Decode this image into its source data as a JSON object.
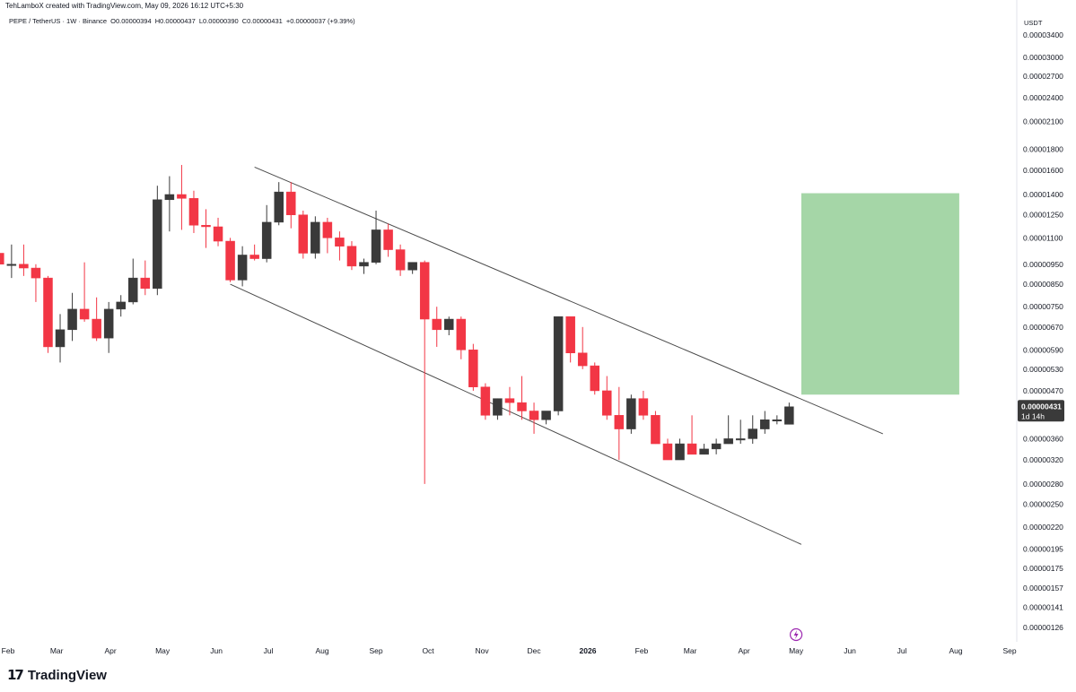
{
  "header": {
    "credit": "TehLamboX created with TradingView.com, May 09, 2026 16:12 UTC+5:30",
    "symbol": "PEPE / TetherUS · 1W · Binance",
    "open": "O0.00000394",
    "high": "H0.00000437",
    "low": "L0.00000390",
    "close": "C0.00000431",
    "change": "+0.00000037 (+9.39%)",
    "currency": "USDT"
  },
  "branding": {
    "logo_mark": "17",
    "logo_text": "TradingView"
  },
  "colors": {
    "up": "#3a3a3a",
    "down": "#f23645",
    "target_zone": "#a5d6a7",
    "channel": "#4a4a4a",
    "price_tag": "#3a3a3a"
  },
  "icons": {
    "event_marker": "lightning-icon"
  },
  "chart_data": {
    "type": "candlestick",
    "interval": "1W",
    "scale": "log",
    "y_ticks": [
      3.4e-05,
      3e-05,
      2.7e-05,
      2.4e-05,
      2.1e-05,
      1.8e-05,
      1.6e-05,
      1.4e-05,
      1.25e-05,
      1.1e-05,
      9.5e-06,
      8.5e-06,
      7.5e-06,
      6.7e-06,
      5.9e-06,
      5.3e-06,
      4.7e-06,
      3.6e-06,
      3.2e-06,
      2.8e-06,
      2.5e-06,
      2.2e-06,
      1.95e-06,
      1.75e-06,
      1.57e-06,
      1.41e-06,
      1.26e-06
    ],
    "y_tick_labels": [
      "0.00003400",
      "0.00003000",
      "0.00002700",
      "0.00002400",
      "0.00002100",
      "0.00001800",
      "0.00001600",
      "0.00001400",
      "0.00001250",
      "0.00001100",
      "0.00000950",
      "0.00000850",
      "0.00000750",
      "0.00000670",
      "0.00000590",
      "0.00000530",
      "0.00000470",
      "0.00000360",
      "0.00000320",
      "0.00000280",
      "0.00000250",
      "0.00000220",
      "0.00000195",
      "0.00000175",
      "0.00000157",
      "0.00000141",
      "0.00000126"
    ],
    "x_ticks": [
      {
        "label": "Feb",
        "date": "2025-02-01"
      },
      {
        "label": "Mar",
        "date": "2025-03-01"
      },
      {
        "label": "Apr",
        "date": "2025-04-01"
      },
      {
        "label": "May",
        "date": "2025-05-01"
      },
      {
        "label": "Jun",
        "date": "2025-06-01"
      },
      {
        "label": "Jul",
        "date": "2025-07-01"
      },
      {
        "label": "Aug",
        "date": "2025-08-01"
      },
      {
        "label": "Sep",
        "date": "2025-09-01"
      },
      {
        "label": "Oct",
        "date": "2025-10-01"
      },
      {
        "label": "Nov",
        "date": "2025-11-01"
      },
      {
        "label": "Dec",
        "date": "2025-12-01"
      },
      {
        "label": "2026",
        "date": "2026-01-01",
        "bold": true
      },
      {
        "label": "Feb",
        "date": "2026-02-01"
      },
      {
        "label": "Mar",
        "date": "2026-03-01"
      },
      {
        "label": "Apr",
        "date": "2026-04-01"
      },
      {
        "label": "May",
        "date": "2026-05-01"
      },
      {
        "label": "Jun",
        "date": "2026-06-01"
      },
      {
        "label": "Jul",
        "date": "2026-07-01"
      },
      {
        "label": "Aug",
        "date": "2026-08-01"
      },
      {
        "label": "Sep",
        "date": "2026-09-01"
      }
    ],
    "candles": [
      {
        "date": "2025-01-27",
        "o": 1.01e-05,
        "h": 1.13e-05,
        "l": 8.1e-06,
        "c": 9.5e-06
      },
      {
        "date": "2025-02-03",
        "o": 9.5e-06,
        "h": 1.06e-05,
        "l": 8.8e-06,
        "c": 9.5e-06
      },
      {
        "date": "2025-02-10",
        "o": 9.5e-06,
        "h": 1.06e-05,
        "l": 8.9e-06,
        "c": 9.3e-06
      },
      {
        "date": "2025-02-17",
        "o": 9.3e-06,
        "h": 9.5e-06,
        "l": 7.7e-06,
        "c": 8.8e-06
      },
      {
        "date": "2025-02-24",
        "o": 8.8e-06,
        "h": 8.9e-06,
        "l": 5.8e-06,
        "c": 6e-06
      },
      {
        "date": "2025-03-03",
        "o": 6e-06,
        "h": 7.2e-06,
        "l": 5.5e-06,
        "c": 6.6e-06
      },
      {
        "date": "2025-03-10",
        "o": 6.6e-06,
        "h": 8.1e-06,
        "l": 6.2e-06,
        "c": 7.4e-06
      },
      {
        "date": "2025-03-17",
        "o": 7.4e-06,
        "h": 9.6e-06,
        "l": 6.9e-06,
        "c": 7e-06
      },
      {
        "date": "2025-03-24",
        "o": 7e-06,
        "h": 7.9e-06,
        "l": 6.2e-06,
        "c": 6.3e-06
      },
      {
        "date": "2025-03-31",
        "o": 6.3e-06,
        "h": 7.7e-06,
        "l": 5.8e-06,
        "c": 7.4e-06
      },
      {
        "date": "2025-04-07",
        "o": 7.4e-06,
        "h": 8e-06,
        "l": 7.1e-06,
        "c": 7.7e-06
      },
      {
        "date": "2025-04-14",
        "o": 7.7e-06,
        "h": 9.8e-06,
        "l": 7.6e-06,
        "c": 8.8e-06
      },
      {
        "date": "2025-04-21",
        "o": 8.8e-06,
        "h": 9.7e-06,
        "l": 8e-06,
        "c": 8.3e-06
      },
      {
        "date": "2025-04-28",
        "o": 8.3e-06,
        "h": 1.47e-05,
        "l": 8e-06,
        "c": 1.36e-05
      },
      {
        "date": "2025-05-05",
        "o": 1.36e-05,
        "h": 1.55e-05,
        "l": 1.14e-05,
        "c": 1.4e-05
      },
      {
        "date": "2025-05-12",
        "o": 1.4e-05,
        "h": 1.65e-05,
        "l": 1.15e-05,
        "c": 1.37e-05
      },
      {
        "date": "2025-05-19",
        "o": 1.37e-05,
        "h": 1.43e-05,
        "l": 1.13e-05,
        "c": 1.18e-05
      },
      {
        "date": "2025-05-26",
        "o": 1.18e-05,
        "h": 1.29e-05,
        "l": 1.04e-05,
        "c": 1.17e-05
      },
      {
        "date": "2025-06-02",
        "o": 1.17e-05,
        "h": 1.23e-05,
        "l": 1.05e-05,
        "c": 1.08e-05
      },
      {
        "date": "2025-06-09",
        "o": 1.08e-05,
        "h": 1.1e-05,
        "l": 8.6e-06,
        "c": 8.7e-06
      },
      {
        "date": "2025-06-16",
        "o": 8.7e-06,
        "h": 1.05e-05,
        "l": 8.4e-06,
        "c": 1e-05
      },
      {
        "date": "2025-06-23",
        "o": 1e-05,
        "h": 1.06e-05,
        "l": 9.7e-06,
        "c": 9.8e-06
      },
      {
        "date": "2025-06-30",
        "o": 9.8e-06,
        "h": 1.32e-05,
        "l": 9.6e-06,
        "c": 1.2e-05
      },
      {
        "date": "2025-07-07",
        "o": 1.2e-05,
        "h": 1.5e-05,
        "l": 1.18e-05,
        "c": 1.42e-05
      },
      {
        "date": "2025-07-14",
        "o": 1.42e-05,
        "h": 1.5e-05,
        "l": 1.16e-05,
        "c": 1.25e-05
      },
      {
        "date": "2025-07-21",
        "o": 1.25e-05,
        "h": 1.28e-05,
        "l": 9.8e-06,
        "c": 1.01e-05
      },
      {
        "date": "2025-07-28",
        "o": 1.01e-05,
        "h": 1.24e-05,
        "l": 9.8e-06,
        "c": 1.2e-05
      },
      {
        "date": "2025-08-04",
        "o": 1.2e-05,
        "h": 1.23e-05,
        "l": 1.01e-05,
        "c": 1.1e-05
      },
      {
        "date": "2025-08-11",
        "o": 1.1e-05,
        "h": 1.14e-05,
        "l": 9.7e-06,
        "c": 1.05e-05
      },
      {
        "date": "2025-08-18",
        "o": 1.05e-05,
        "h": 1.08e-05,
        "l": 9.2e-06,
        "c": 9.4e-06
      },
      {
        "date": "2025-08-25",
        "o": 9.4e-06,
        "h": 9.8e-06,
        "l": 9e-06,
        "c": 9.6e-06
      },
      {
        "date": "2025-09-01",
        "o": 9.6e-06,
        "h": 1.28e-05,
        "l": 9.5e-06,
        "c": 1.15e-05
      },
      {
        "date": "2025-09-08",
        "o": 1.15e-05,
        "h": 1.19e-05,
        "l": 9.9e-06,
        "c": 1.03e-05
      },
      {
        "date": "2025-09-15",
        "o": 1.03e-05,
        "h": 1.06e-05,
        "l": 8.9e-06,
        "c": 9.2e-06
      },
      {
        "date": "2025-09-22",
        "o": 9.2e-06,
        "h": 9.6e-06,
        "l": 9e-06,
        "c": 9.6e-06
      },
      {
        "date": "2025-09-29",
        "o": 9.6e-06,
        "h": 9.7e-06,
        "l": 2.8e-06,
        "c": 7e-06
      },
      {
        "date": "2025-10-06",
        "o": 7e-06,
        "h": 7.5e-06,
        "l": 6e-06,
        "c": 6.6e-06
      },
      {
        "date": "2025-10-13",
        "o": 6.6e-06,
        "h": 7.1e-06,
        "l": 6.4e-06,
        "c": 7e-06
      },
      {
        "date": "2025-10-20",
        "o": 7e-06,
        "h": 7.1e-06,
        "l": 5.6e-06,
        "c": 5.9e-06
      },
      {
        "date": "2025-10-27",
        "o": 5.9e-06,
        "h": 6.1e-06,
        "l": 4.7e-06,
        "c": 4.8e-06
      },
      {
        "date": "2025-11-03",
        "o": 4.8e-06,
        "h": 4.9e-06,
        "l": 4e-06,
        "c": 4.1e-06
      },
      {
        "date": "2025-11-10",
        "o": 4.1e-06,
        "h": 4.5e-06,
        "l": 4e-06,
        "c": 4.5e-06
      },
      {
        "date": "2025-11-17",
        "o": 4.5e-06,
        "h": 4.8e-06,
        "l": 4.1e-06,
        "c": 4.4e-06
      },
      {
        "date": "2025-11-24",
        "o": 4.4e-06,
        "h": 5.1e-06,
        "l": 4e-06,
        "c": 4.2e-06
      },
      {
        "date": "2025-12-01",
        "o": 4.2e-06,
        "h": 4.4e-06,
        "l": 3.7e-06,
        "c": 4e-06
      },
      {
        "date": "2025-12-08",
        "o": 4e-06,
        "h": 4.2e-06,
        "l": 3.9e-06,
        "c": 4.2e-06
      },
      {
        "date": "2025-12-15",
        "o": 4.2e-06,
        "h": 7.1e-06,
        "l": 4.1e-06,
        "c": 7.1e-06
      },
      {
        "date": "2025-12-22",
        "o": 7.1e-06,
        "h": 7.1e-06,
        "l": 5.5e-06,
        "c": 5.8e-06
      },
      {
        "date": "2025-12-29",
        "o": 5.8e-06,
        "h": 6.7e-06,
        "l": 5.3e-06,
        "c": 5.4e-06
      },
      {
        "date": "2026-01-05",
        "o": 5.4e-06,
        "h": 5.5e-06,
        "l": 4.6e-06,
        "c": 4.7e-06
      },
      {
        "date": "2026-01-12",
        "o": 4.7e-06,
        "h": 5.1e-06,
        "l": 4e-06,
        "c": 4.1e-06
      },
      {
        "date": "2026-01-19",
        "o": 4.1e-06,
        "h": 4.8e-06,
        "l": 3.2e-06,
        "c": 3.8e-06
      },
      {
        "date": "2026-01-26",
        "o": 3.8e-06,
        "h": 4.6e-06,
        "l": 3.7e-06,
        "c": 4.5e-06
      },
      {
        "date": "2026-02-02",
        "o": 4.5e-06,
        "h": 4.7e-06,
        "l": 4e-06,
        "c": 4.1e-06
      },
      {
        "date": "2026-02-09",
        "o": 4.1e-06,
        "h": 4.2e-06,
        "l": 3.5e-06,
        "c": 3.5e-06
      },
      {
        "date": "2026-02-16",
        "o": 3.5e-06,
        "h": 3.6e-06,
        "l": 3.2e-06,
        "c": 3.2e-06
      },
      {
        "date": "2026-02-23",
        "o": 3.2e-06,
        "h": 3.6e-06,
        "l": 3.2e-06,
        "c": 3.5e-06
      },
      {
        "date": "2026-03-02",
        "o": 3.5e-06,
        "h": 4.1e-06,
        "l": 3.3e-06,
        "c": 3.3e-06
      },
      {
        "date": "2026-03-09",
        "o": 3.3e-06,
        "h": 3.5e-06,
        "l": 3.3e-06,
        "c": 3.4e-06
      },
      {
        "date": "2026-03-16",
        "o": 3.4e-06,
        "h": 3.6e-06,
        "l": 3.3e-06,
        "c": 3.5e-06
      },
      {
        "date": "2026-03-23",
        "o": 3.5e-06,
        "h": 4.1e-06,
        "l": 3.5e-06,
        "c": 3.6e-06
      },
      {
        "date": "2026-03-30",
        "o": 3.6e-06,
        "h": 4e-06,
        "l": 3.5e-06,
        "c": 3.6e-06
      },
      {
        "date": "2026-04-06",
        "o": 3.6e-06,
        "h": 4.1e-06,
        "l": 3.5e-06,
        "c": 3.8e-06
      },
      {
        "date": "2026-04-13",
        "o": 3.8e-06,
        "h": 4.2e-06,
        "l": 3.7e-06,
        "c": 4e-06
      },
      {
        "date": "2026-04-20",
        "o": 4e-06,
        "h": 4.1e-06,
        "l": 3.9e-06,
        "c": 4e-06
      },
      {
        "date": "2026-04-27",
        "o": 3.9e-06,
        "h": 4.4e-06,
        "l": 3.9e-06,
        "c": 4.3e-06
      }
    ],
    "channel": {
      "upper": [
        {
          "date": "2025-06-23",
          "price": 1.63e-05
        },
        {
          "date": "2026-06-20",
          "price": 3.7e-06
        }
      ],
      "lower": [
        {
          "date": "2025-06-09",
          "price": 8.5e-06
        },
        {
          "date": "2026-05-04",
          "price": 2e-06
        }
      ]
    },
    "target_zone": {
      "date_start": "2026-05-04",
      "date_end": "2026-08-03",
      "price_low": 4.6e-06,
      "price_high": 1.41e-05
    },
    "last_price": {
      "value": "0.00000431",
      "countdown": "1d 14h",
      "price": 4.31e-06
    }
  }
}
